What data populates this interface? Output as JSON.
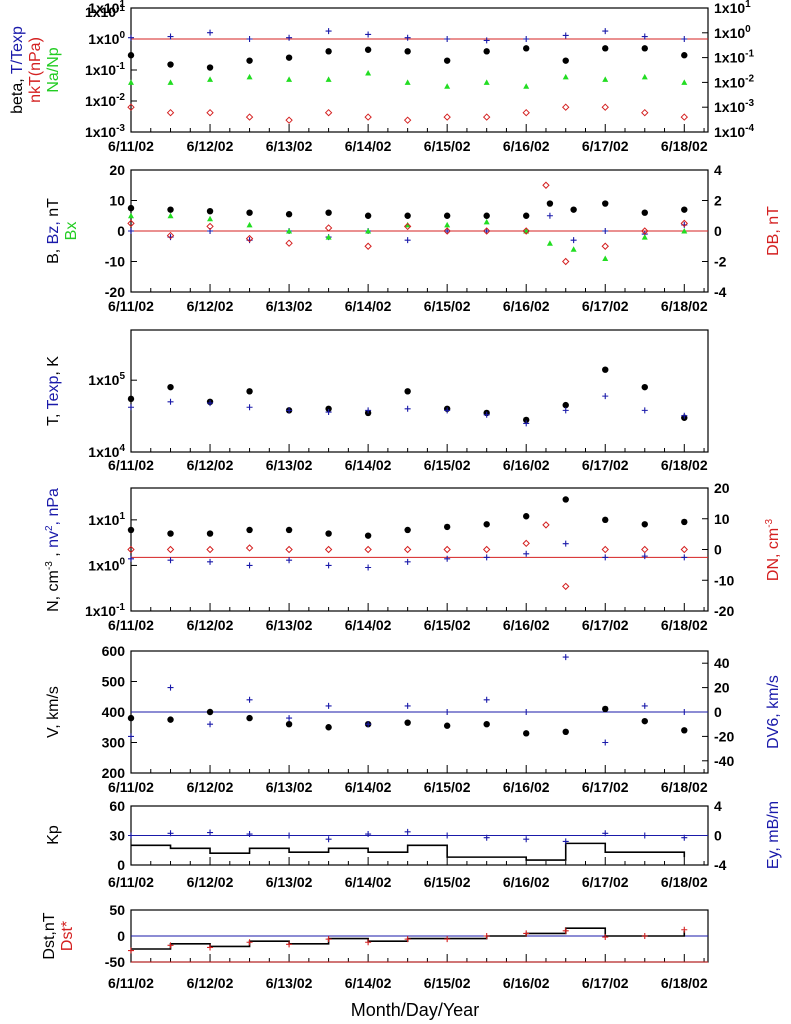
{
  "colors": {
    "black": "#000000",
    "blue": "#1a1aaa",
    "red": "#d42020",
    "green": "#22dd22"
  },
  "x_axis_title": "Month/Day/Year",
  "x_tick_labels": [
    "6/11/02",
    "6/12/02",
    "6/13/02",
    "6/14/02",
    "6/15/02",
    "6/16/02",
    "6/17/02",
    "6/18/02"
  ],
  "chart_data": [
    {
      "type": "scatter",
      "ylabel_parts": [
        "beta, ",
        "T/Texp",
        "nkT(nPa)",
        "Na/Np"
      ],
      "y_scale": "log",
      "ylim": [
        0.001,
        10
      ],
      "y_ticks": [
        "1x10-3",
        "1x10-2",
        "1x10-1",
        "1x100",
        "1x101"
      ],
      "y2_scale": "log",
      "y2lim": [
        0.0001,
        10
      ],
      "y2_ticks": [
        "1x10-4",
        "1x10-3",
        "1x10-2",
        "1x10-1",
        "1x100",
        "1x101"
      ],
      "ref_line": {
        "y": 1,
        "color": "red"
      },
      "series": [
        {
          "name": "beta",
          "color": "black",
          "marker": "dot",
          "axis": "left",
          "x": [
            0.0,
            0.5,
            1.0,
            1.5,
            2.0,
            2.5,
            3.0,
            3.5,
            4.0,
            4.5,
            5.0,
            5.5,
            6.0,
            6.5,
            7.0
          ],
          "y": [
            0.3,
            0.15,
            0.12,
            0.2,
            0.25,
            0.4,
            0.45,
            0.4,
            0.2,
            0.4,
            0.5,
            0.2,
            0.5,
            0.5,
            0.3
          ]
        },
        {
          "name": "T/Texp",
          "color": "blue",
          "marker": "plus",
          "axis": "left",
          "x": [
            0.0,
            0.5,
            1.0,
            1.5,
            2.0,
            2.5,
            3.0,
            3.5,
            4.0,
            4.5,
            5.0,
            5.5,
            6.0,
            6.5,
            7.0
          ],
          "y": [
            1.1,
            1.2,
            1.6,
            1.0,
            1.1,
            1.8,
            1.4,
            1.1,
            1.0,
            0.9,
            1.0,
            1.3,
            1.8,
            1.2,
            1.0
          ]
        },
        {
          "name": "nkT(nPa)",
          "color": "red",
          "marker": "diamond",
          "axis": "right",
          "x": [
            0.0,
            0.5,
            1.0,
            1.5,
            2.0,
            2.5,
            3.0,
            3.5,
            4.0,
            4.5,
            5.0,
            5.5,
            6.0,
            6.5,
            7.0
          ],
          "y": [
            0.001,
            0.0006,
            0.0006,
            0.0004,
            0.0003,
            0.0006,
            0.0004,
            0.0003,
            0.0004,
            0.0004,
            0.0006,
            0.001,
            0.001,
            0.0006,
            0.0004
          ]
        },
        {
          "name": "Na/Np",
          "color": "green",
          "marker": "triangle",
          "axis": "left",
          "x": [
            0.0,
            0.5,
            1.0,
            1.5,
            2.0,
            2.5,
            3.0,
            3.5,
            4.0,
            4.5,
            5.0,
            5.5,
            6.0,
            6.5,
            7.0
          ],
          "y": [
            0.04,
            0.04,
            0.05,
            0.06,
            0.05,
            0.05,
            0.08,
            0.04,
            0.03,
            0.04,
            0.03,
            0.06,
            0.05,
            0.06,
            0.04
          ]
        }
      ]
    },
    {
      "type": "scatter",
      "ylabel_parts": [
        "B, ",
        "Bz, ",
        "nT",
        "Bx",
        "DB, nT"
      ],
      "y_scale": "linear",
      "ylim": [
        -20,
        20
      ],
      "y_ticks": [
        "-20",
        "-10",
        "0",
        "10",
        "20"
      ],
      "y2_scale": "linear",
      "y2lim": [
        -4,
        4
      ],
      "y2_ticks": [
        "-4",
        "-2",
        "0",
        "2",
        "4"
      ],
      "ref_line": {
        "y": 0,
        "color": "red"
      },
      "series": [
        {
          "name": "B",
          "color": "black",
          "marker": "dot",
          "axis": "left",
          "x": [
            0.0,
            0.5,
            1.0,
            1.5,
            2.0,
            2.5,
            3.0,
            3.5,
            4.0,
            4.5,
            5.0,
            5.3,
            5.6,
            6.0,
            6.5,
            7.0
          ],
          "y": [
            7.5,
            7,
            6.5,
            6,
            5.5,
            6,
            5,
            5,
            5,
            5,
            5,
            9,
            7,
            9,
            6,
            7
          ]
        },
        {
          "name": "Bz",
          "color": "blue",
          "marker": "plus",
          "axis": "left",
          "x": [
            0.0,
            0.5,
            1.0,
            1.5,
            2.0,
            2.5,
            3.0,
            3.5,
            4.0,
            4.5,
            5.0,
            5.3,
            5.6,
            6.0,
            6.5,
            7.0
          ],
          "y": [
            0,
            -2,
            0,
            -3,
            0,
            -2,
            0,
            -3,
            0,
            0,
            0,
            5,
            -3,
            0,
            -1,
            2
          ]
        },
        {
          "name": "Bx",
          "color": "green",
          "marker": "triangle",
          "axis": "left",
          "x": [
            0.0,
            0.5,
            1.0,
            1.5,
            2.0,
            2.5,
            3.0,
            3.5,
            4.0,
            4.5,
            5.0,
            5.3,
            5.6,
            6.0,
            6.5,
            7.0
          ],
          "y": [
            5,
            5,
            4,
            2,
            0,
            -2,
            0,
            2,
            2,
            3,
            0,
            -4,
            -6,
            -9,
            -2,
            0
          ]
        },
        {
          "name": "DB",
          "color": "red",
          "marker": "diamond",
          "axis": "right",
          "x": [
            0.0,
            0.5,
            1.0,
            1.5,
            2.0,
            2.5,
            3.0,
            3.5,
            4.0,
            4.5,
            5.0,
            5.25,
            5.5,
            6.0,
            6.5,
            7.0
          ],
          "y": [
            0.5,
            -0.3,
            0.3,
            -0.5,
            -0.8,
            0.2,
            -1,
            0.3,
            0,
            0,
            0,
            3,
            -2,
            -1,
            0,
            0.5
          ]
        }
      ]
    },
    {
      "type": "scatter",
      "ylabel_parts": [
        "T, ",
        "Texp",
        ", K"
      ],
      "y_scale": "log",
      "ylim": [
        10000,
        500000
      ],
      "y_ticks": [
        "1x104",
        "1x105"
      ],
      "series": [
        {
          "name": "T",
          "color": "black",
          "marker": "dot",
          "axis": "left",
          "x": [
            0.0,
            0.5,
            1.0,
            1.5,
            2.0,
            2.5,
            3.0,
            3.5,
            4.0,
            4.5,
            5.0,
            5.5,
            6.0,
            6.5,
            7.0
          ],
          "y": [
            55000,
            80000,
            50000,
            70000,
            38000,
            40000,
            35000,
            70000,
            40000,
            35000,
            28000,
            45000,
            140000,
            80000,
            30000
          ]
        },
        {
          "name": "Texp",
          "color": "blue",
          "marker": "plus",
          "axis": "left",
          "x": [
            0.0,
            0.5,
            1.0,
            1.5,
            2.0,
            2.5,
            3.0,
            3.5,
            4.0,
            4.5,
            5.0,
            5.5,
            6.0,
            6.5,
            7.0
          ],
          "y": [
            42000,
            50000,
            48000,
            42000,
            38000,
            36000,
            38000,
            40000,
            38000,
            33000,
            25000,
            38000,
            60000,
            38000,
            32000
          ]
        }
      ]
    },
    {
      "type": "scatter",
      "ylabel_parts": [
        "N, cm-3 , ",
        "nv2, nPa",
        "DN, cm-3"
      ],
      "y_scale": "log",
      "ylim": [
        0.1,
        50
      ],
      "y_ticks": [
        "1x10-1",
        "1x100",
        "1x101"
      ],
      "y2_scale": "linear",
      "y2lim": [
        -20,
        20
      ],
      "y2_ticks": [
        "-20",
        "-10",
        "0",
        "10",
        "20"
      ],
      "ref_line": {
        "y": 1.5,
        "color": "red"
      },
      "series": [
        {
          "name": "N",
          "color": "black",
          "marker": "dot",
          "axis": "left",
          "x": [
            0.0,
            0.5,
            1.0,
            1.5,
            2.0,
            2.5,
            3.0,
            3.5,
            4.0,
            4.5,
            5.0,
            5.5,
            6.0,
            6.5,
            7.0
          ],
          "y": [
            6,
            5,
            5,
            6,
            6,
            5,
            4.5,
            6,
            7,
            8,
            12,
            28,
            10,
            8,
            9
          ]
        },
        {
          "name": "nv2",
          "color": "blue",
          "marker": "plus",
          "axis": "left",
          "x": [
            0.0,
            0.5,
            1.0,
            1.5,
            2.0,
            2.5,
            3.0,
            3.5,
            4.0,
            4.5,
            5.0,
            5.5,
            6.0,
            6.5,
            7.0
          ],
          "y": [
            1.4,
            1.3,
            1.2,
            1.0,
            1.3,
            1.0,
            0.9,
            1.2,
            1.4,
            1.5,
            1.8,
            3.0,
            1.5,
            1.6,
            1.5
          ]
        },
        {
          "name": "DN",
          "color": "red",
          "marker": "diamond",
          "axis": "right",
          "x": [
            0.0,
            0.5,
            1.0,
            1.5,
            2.0,
            2.5,
            3.0,
            3.5,
            4.0,
            4.5,
            5.0,
            5.25,
            5.5,
            6.0,
            6.5,
            7.0
          ],
          "y": [
            0,
            0,
            0,
            0.5,
            0,
            0,
            0,
            0,
            0,
            0,
            2,
            8,
            -12,
            0,
            0,
            0
          ]
        }
      ]
    },
    {
      "type": "scatter",
      "ylabel_parts": [
        "V, km/s",
        "DV6, km/s"
      ],
      "y_scale": "linear",
      "ylim": [
        200,
        600
      ],
      "y_ticks": [
        "200",
        "300",
        "400",
        "500",
        "600"
      ],
      "y2_scale": "linear",
      "y2lim": [
        -50,
        50
      ],
      "y2_ticks": [
        "-40",
        "-20",
        "0",
        "20",
        "40"
      ],
      "ref_line": {
        "y": 400,
        "color": "blue"
      },
      "series": [
        {
          "name": "V",
          "color": "black",
          "marker": "dot",
          "axis": "left",
          "x": [
            0.0,
            0.5,
            1.0,
            1.5,
            2.0,
            2.5,
            3.0,
            3.5,
            4.0,
            4.5,
            5.0,
            5.5,
            6.0,
            6.5,
            7.0
          ],
          "y": [
            380,
            375,
            400,
            380,
            360,
            350,
            360,
            365,
            355,
            360,
            330,
            335,
            410,
            370,
            340
          ]
        },
        {
          "name": "DV6",
          "color": "blue",
          "marker": "plus",
          "axis": "right",
          "x": [
            0.0,
            0.5,
            1.0,
            1.5,
            2.0,
            2.5,
            3.0,
            3.5,
            4.0,
            4.5,
            5.0,
            5.5,
            6.0,
            6.5,
            7.0
          ],
          "y": [
            -20,
            20,
            -10,
            10,
            -5,
            5,
            -10,
            5,
            0,
            10,
            0,
            45,
            -25,
            5,
            0
          ]
        }
      ]
    },
    {
      "type": "line",
      "ylabel_parts": [
        "Kp",
        "Ey, mB/m"
      ],
      "y_scale": "linear",
      "ylim": [
        0,
        60
      ],
      "y_ticks": [
        "0",
        "30",
        "60"
      ],
      "y2_scale": "linear",
      "y2lim": [
        -4,
        4
      ],
      "y2_ticks": [
        "-4",
        "0",
        "4"
      ],
      "ref_line": {
        "y": 30,
        "color": "blue"
      },
      "series": [
        {
          "name": "Kp",
          "color": "black",
          "marker": "line",
          "axis": "left",
          "x": [
            0.0,
            0.5,
            1.0,
            1.5,
            2.0,
            2.5,
            3.0,
            3.5,
            4.0,
            4.5,
            5.0,
            5.5,
            6.0,
            6.5,
            7.0
          ],
          "y": [
            20,
            17,
            12,
            17,
            13,
            17,
            13,
            20,
            8,
            8,
            5,
            22,
            13,
            13,
            8
          ]
        },
        {
          "name": "Ey",
          "color": "blue",
          "marker": "plus",
          "axis": "right",
          "x": [
            0.0,
            0.5,
            1.0,
            1.5,
            2.0,
            2.5,
            3.0,
            3.5,
            4.0,
            4.5,
            5.0,
            5.5,
            6.0,
            6.5,
            7.0
          ],
          "y": [
            0,
            0.3,
            0.4,
            0.2,
            0,
            -0.5,
            0.2,
            0.5,
            0,
            -0.3,
            -0.5,
            -0.8,
            0.3,
            0,
            -0.3
          ]
        }
      ]
    },
    {
      "type": "line",
      "ylabel_parts": [
        "Dst,nT",
        "Dst*"
      ],
      "y_scale": "linear",
      "ylim": [
        -50,
        50
      ],
      "y_ticks": [
        "-50",
        "0",
        "50"
      ],
      "ref_line": {
        "y": 0,
        "color": "blue"
      },
      "ref_line2": {
        "y": -50,
        "color": "red"
      },
      "series": [
        {
          "name": "Dst",
          "color": "black",
          "marker": "line",
          "axis": "left",
          "x": [
            0.0,
            0.5,
            1.0,
            1.5,
            2.0,
            2.5,
            3.0,
            3.5,
            4.0,
            4.5,
            5.0,
            5.5,
            6.0,
            6.5,
            7.0
          ],
          "y": [
            -25,
            -15,
            -20,
            -10,
            -15,
            -5,
            -10,
            -5,
            -5,
            0,
            5,
            15,
            0,
            0,
            10
          ]
        },
        {
          "name": "Dst*",
          "color": "red",
          "marker": "plus",
          "axis": "left",
          "x": [
            0.0,
            0.5,
            1.0,
            1.5,
            2.0,
            2.5,
            3.0,
            3.5,
            4.0,
            4.5,
            5.0,
            5.5,
            6.0,
            6.5,
            7.0
          ],
          "y": [
            -28,
            -18,
            -22,
            -12,
            -16,
            -6,
            -12,
            -6,
            -6,
            0,
            5,
            10,
            -2,
            0,
            12
          ]
        }
      ]
    }
  ]
}
